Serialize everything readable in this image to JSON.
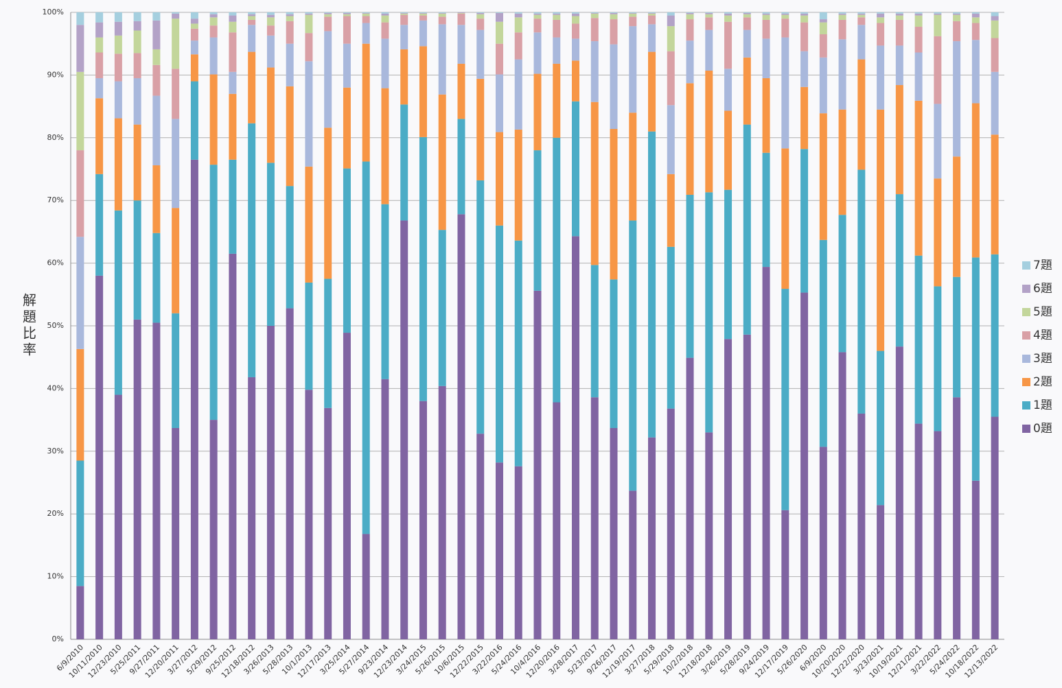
{
  "chart_data": {
    "type": "stacked_bar",
    "ylabel": "解題比率",
    "categories": [
      "6/9/2010",
      "10/11/2010",
      "12/23/2010",
      "5/25/2011",
      "9/27/2011",
      "12/20/2011",
      "3/27/2012",
      "5/29/2012",
      "9/25/2012",
      "12/18/2012",
      "3/26/2013",
      "5/28/2013",
      "10/1/2013",
      "12/17/2013",
      "3/25/2014",
      "5/27/2014",
      "9/23/2014",
      "12/23/2014",
      "3/24/2015",
      "5/26/2015",
      "10/6/2015",
      "12/22/2015",
      "3/22/2016",
      "5/24/2016",
      "10/4/2016",
      "12/20/2016",
      "3/28/2017",
      "5/23/2017",
      "9/26/2017",
      "12/19/2017",
      "3/27/2018",
      "5/29/2018",
      "10/2/2018",
      "12/18/2018",
      "3/26/2019",
      "5/28/2019",
      "9/24/2019",
      "12/17/2019",
      "5/26/2020",
      "6/9/2020",
      "10/20/2020",
      "12/22/2020",
      "3/23/2021",
      "10/19/2021",
      "12/21/2021",
      "3/22/2022",
      "5/24/2022",
      "10/18/2022",
      "12/13/2022"
    ],
    "series": [
      {
        "name": "0題",
        "color": "#8064a2",
        "values": [
          8.5,
          58,
          39,
          51,
          50.5,
          33.7,
          76.5,
          35,
          61.5,
          41.8,
          50,
          52.8,
          39.8,
          36.9,
          48.9,
          16.8,
          41.5,
          66.8,
          38,
          40.4,
          67.8,
          32.8,
          28.2,
          27.6,
          55.6,
          37.8,
          64.3,
          38.6,
          33.7,
          23.7,
          32.2,
          36.8,
          44.9,
          33,
          47.9,
          48.6,
          59.4,
          20.6,
          55.3,
          30.7,
          45.8,
          36,
          21.4,
          46.7,
          34.4,
          33.2,
          38.6,
          25.3,
          35.5
        ]
      },
      {
        "name": "1題",
        "color": "#4bacc6",
        "values": [
          20,
          16.2,
          29.4,
          19,
          14.3,
          18.3,
          12.5,
          40.7,
          15,
          40.5,
          26,
          19.5,
          17.1,
          20.6,
          26.2,
          59.4,
          27.9,
          18.5,
          42.1,
          24.9,
          15.2,
          40.4,
          37.8,
          36,
          22.4,
          42.2,
          21.5,
          21.1,
          23.7,
          43.1,
          48.8,
          25.8,
          26,
          38.3,
          23.8,
          33.5,
          18.2,
          35.3,
          22.9,
          33,
          21.9,
          38.9,
          24.6,
          24.3,
          26.8,
          23.1,
          19.2,
          35.6,
          25.9
        ]
      },
      {
        "name": "2題",
        "color": "#f79646",
        "values": [
          17.8,
          12.1,
          14.7,
          12.1,
          10.8,
          16.8,
          4.3,
          14.4,
          10.5,
          11.4,
          15.2,
          15.9,
          18.5,
          24.1,
          12.9,
          18.8,
          18.5,
          8.8,
          14.5,
          21.6,
          8.8,
          16.2,
          14.9,
          17.7,
          12.2,
          11.8,
          6.5,
          26,
          24,
          17.2,
          12.7,
          11.6,
          17.8,
          19.4,
          12.6,
          10.7,
          11.9,
          22.4,
          9.9,
          20.2,
          16.8,
          17.6,
          38.5,
          17.4,
          24.7,
          17.2,
          19.2,
          24.6,
          19.1
        ]
      },
      {
        "name": "3題",
        "color": "#a9b8dc",
        "values": [
          17.9,
          3.2,
          5.9,
          7.4,
          11.1,
          14.2,
          2.2,
          5.9,
          3.5,
          4.3,
          5.1,
          6.8,
          16.8,
          15.4,
          7,
          3.3,
          7.9,
          3.9,
          4.1,
          11.2,
          6.2,
          7.8,
          9.2,
          11.2,
          6.6,
          4.2,
          3.5,
          9.7,
          13.5,
          13.8,
          4.4,
          11,
          6.8,
          6.5,
          6.7,
          4.4,
          6.3,
          17.7,
          5.7,
          8.9,
          11.2,
          5.5,
          10.2,
          6.3,
          7.7,
          11.9,
          18.4,
          10.1,
          10
        ]
      },
      {
        "name": "4題",
        "color": "#d9a0a6",
        "values": [
          13.8,
          4.1,
          4.4,
          4,
          4.9,
          8,
          1.9,
          1.9,
          6.3,
          0.8,
          1.6,
          3.6,
          4.5,
          2.3,
          4.4,
          1.1,
          2.6,
          1.6,
          0.8,
          1.2,
          1.8,
          1.8,
          4.9,
          4.3,
          2.2,
          2.8,
          2.4,
          3.7,
          4,
          1.5,
          1.4,
          8.6,
          3.4,
          2,
          7.5,
          2,
          3,
          3,
          4.6,
          3.7,
          3.1,
          1.2,
          3.6,
          4.1,
          4.1,
          10.8,
          3.2,
          2.7,
          5.4
        ]
      },
      {
        "name": "5題",
        "color": "#c3d69b",
        "values": [
          12.5,
          2.4,
          2.9,
          3.6,
          2.5,
          8,
          0.8,
          1.3,
          1.7,
          0.6,
          1.3,
          0.8,
          2.9,
          0.4,
          0.3,
          0.4,
          1.1,
          0.2,
          0.3,
          0.5,
          0.1,
          0.7,
          3.5,
          2.4,
          0.6,
          0.8,
          1.2,
          0.7,
          0.8,
          0.5,
          0.3,
          4,
          0.8,
          0.5,
          1,
          0.5,
          0.8,
          0.6,
          1.1,
          1.9,
          0.8,
          0.4,
          0.9,
          0.7,
          1.8,
          3.4,
          1,
          0.9,
          2.8
        ]
      },
      {
        "name": "6題",
        "color": "#b3a2c7",
        "values": [
          7.5,
          2.4,
          2.2,
          1.5,
          4.6,
          0.8,
          0.8,
          0.5,
          1,
          0.3,
          0.4,
          0.3,
          0.2,
          0.2,
          0.2,
          0.1,
          0.3,
          0.1,
          0.1,
          0.1,
          0.1,
          0.2,
          1.4,
          0.6,
          0.2,
          0.2,
          0.4,
          0.1,
          0.2,
          0.1,
          0.1,
          1.7,
          0.2,
          0.2,
          0.3,
          0.2,
          0.2,
          0.2,
          0.3,
          0.5,
          0.2,
          0.2,
          0.6,
          0.3,
          0.3,
          0.2,
          0.2,
          0.6,
          0.7
        ]
      },
      {
        "name": "7題",
        "color": "#a5cfdf",
        "values": [
          2,
          1.6,
          1.5,
          1.4,
          1.3,
          0.2,
          1,
          0.3,
          0.5,
          0.3,
          0.4,
          0.3,
          0.2,
          0.1,
          0.1,
          0.1,
          0.2,
          0.1,
          0.1,
          0.1,
          0,
          0.1,
          0.1,
          0.2,
          0.2,
          0.2,
          0.2,
          0.1,
          0.1,
          0.1,
          0.1,
          0.5,
          0.1,
          0.1,
          0.2,
          0.1,
          0.2,
          0.2,
          0.2,
          1.1,
          0.2,
          0.2,
          0.2,
          0.2,
          0.2,
          0.2,
          0.2,
          0.2,
          0.6
        ]
      }
    ],
    "ylim": [
      0,
      100
    ],
    "yticks": [
      {
        "value": 0,
        "label": "0%"
      },
      {
        "value": 10,
        "label": "10%"
      },
      {
        "value": 20,
        "label": "20%"
      },
      {
        "value": 30,
        "label": "30%"
      },
      {
        "value": 40,
        "label": "40%"
      },
      {
        "value": 50,
        "label": "50%"
      },
      {
        "value": 60,
        "label": "60%"
      },
      {
        "value": 70,
        "label": "70%"
      },
      {
        "value": 80,
        "label": "80%"
      },
      {
        "value": 90,
        "label": "90%"
      },
      {
        "value": 100,
        "label": "100%"
      }
    ],
    "grid": true,
    "legend": "right"
  }
}
